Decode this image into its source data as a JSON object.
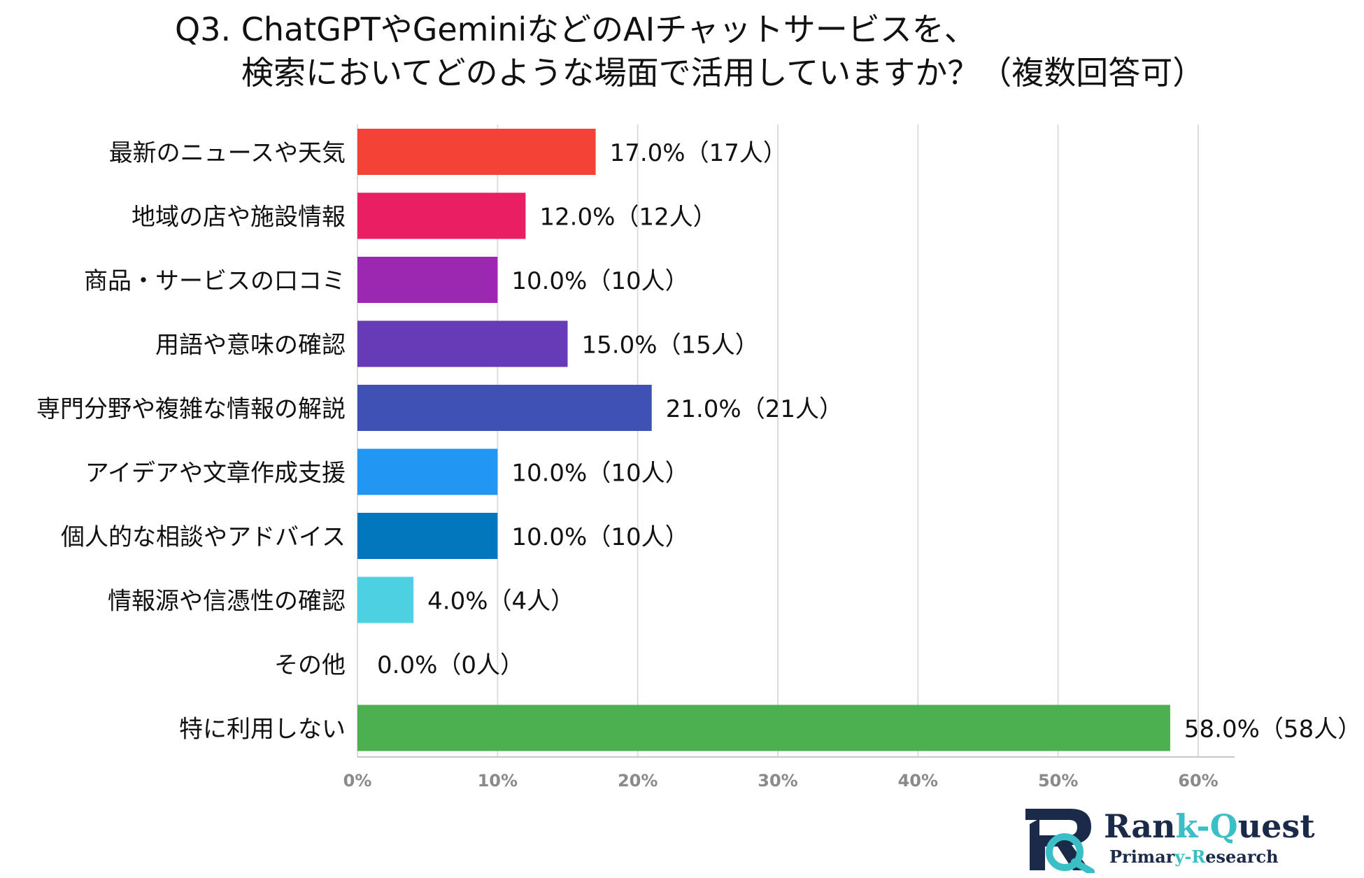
{
  "title": {
    "line1": "Q3. ChatGPTやGeminiなどのAIチャットサービスを、",
    "line2": "検索においてどのような場面で活用していますか？（複数回答可）"
  },
  "chart_data": {
    "type": "bar",
    "orientation": "horizontal",
    "categories": [
      "最新のニュースや天気",
      "地域の店や施設情報",
      "商品・サービスの口コミ",
      "用語や意味の確認",
      "専門分野や複雑な情報の解説",
      "アイデアや文章作成支援",
      "個人的な相談やアドバイス",
      "情報源や信憑性の確認",
      "その他",
      "特に利用しない"
    ],
    "values": [
      17.0,
      12.0,
      10.0,
      15.0,
      21.0,
      10.0,
      10.0,
      4.0,
      0.0,
      58.0
    ],
    "value_labels": [
      "17.0%（17人）",
      "12.0%（12人）",
      "10.0%（10人）",
      "15.0%（15人）",
      "21.0%（21人）",
      "10.0%（10人）",
      "10.0%（10人）",
      "4.0%（4人）",
      "0.0%（0人）",
      "58.0%（58人）"
    ],
    "colors": [
      "#f44336",
      "#e91e63",
      "#9c27b0",
      "#673ab7",
      "#3f51b5",
      "#2196f3",
      "#0277bd",
      "#4dd0e1",
      "#9e9e9e",
      "#4caf50"
    ],
    "xlim": [
      0,
      60
    ],
    "ticks": [
      0,
      10,
      20,
      30,
      40,
      50,
      60
    ],
    "tick_labels": [
      "0%",
      "10%",
      "20%",
      "30%",
      "40%",
      "50%",
      "60%"
    ],
    "grid": true,
    "xlabel": "",
    "ylabel": ""
  },
  "logo": {
    "name_a": "Ran",
    "name_b": "k-Q",
    "name_c": "uest",
    "sub_a": "Primar",
    "sub_b": "y-R",
    "sub_c": "esearch",
    "accent_color": "#3bbfc6",
    "dark_color": "#1c2a4a"
  }
}
